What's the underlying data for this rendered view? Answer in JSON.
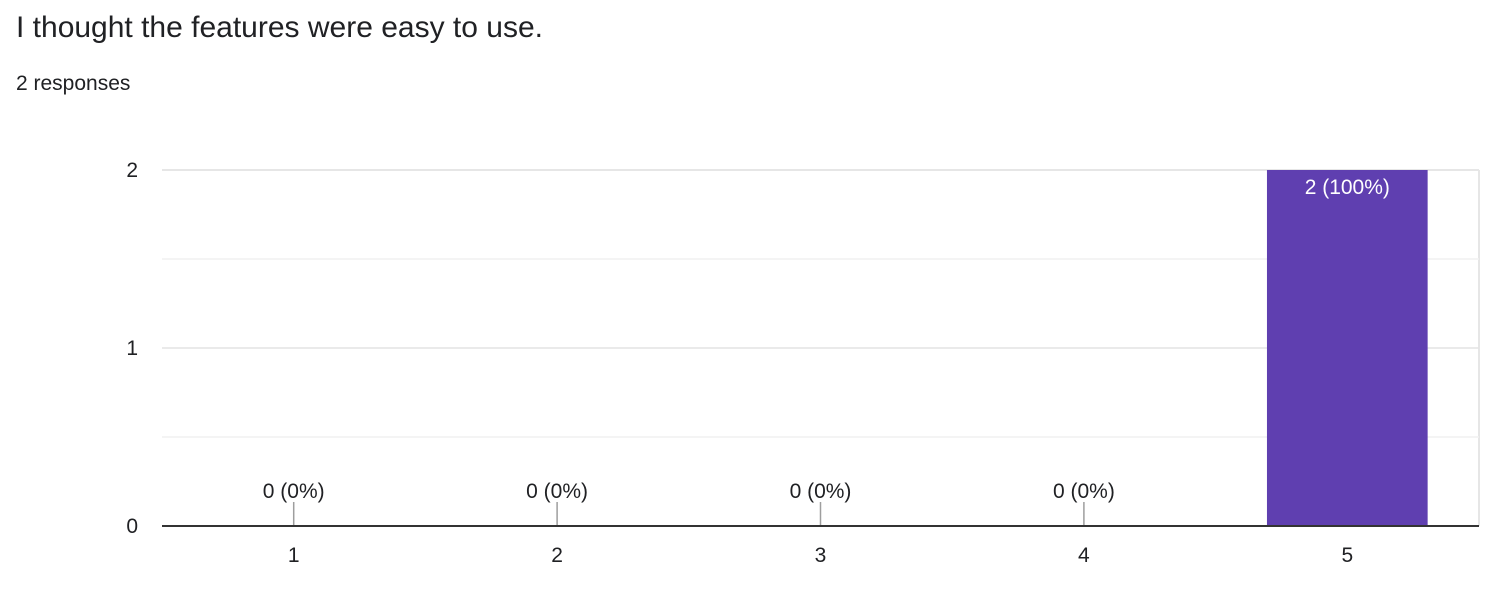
{
  "question": {
    "title": "I thought the features were easy to use.",
    "responses": "2 responses"
  },
  "chart_data": {
    "type": "bar",
    "categories": [
      "1",
      "2",
      "3",
      "4",
      "5"
    ],
    "values": [
      0,
      0,
      0,
      0,
      2
    ],
    "data_labels": [
      "0 (0%)",
      "0 (0%)",
      "0 (0%)",
      "0 (0%)",
      "2 (100%)"
    ],
    "y_ticks": [
      "0",
      "1",
      "2"
    ],
    "ylim": [
      0,
      2
    ],
    "grid": true,
    "bar_color": "#5f3fb0",
    "title": "",
    "xlabel": "",
    "ylabel": ""
  }
}
